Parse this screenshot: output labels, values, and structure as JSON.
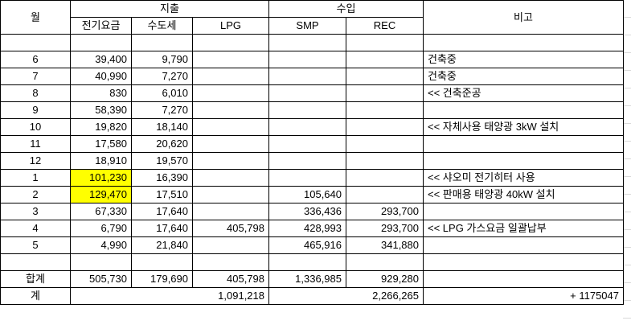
{
  "header": {
    "month": "월",
    "expense_group": "지출",
    "income_group": "수입",
    "remarks": "비고",
    "col_electricity": "전기요금",
    "col_water": "수도세",
    "col_lpg": "LPG",
    "col_smp": "SMP",
    "col_rec": "REC"
  },
  "rows": [
    {
      "month": "",
      "elec": "",
      "water": "",
      "lpg": "",
      "smp": "",
      "rec": "",
      "note": ""
    },
    {
      "month": "6",
      "elec": "39,400",
      "water": "9,790",
      "lpg": "",
      "smp": "",
      "rec": "",
      "note": "건축중"
    },
    {
      "month": "7",
      "elec": "40,990",
      "water": "7,270",
      "lpg": "",
      "smp": "",
      "rec": "",
      "note": "건축중"
    },
    {
      "month": "8",
      "elec": "830",
      "water": "6,010",
      "lpg": "",
      "smp": "",
      "rec": "",
      "note": "<< 건축준공"
    },
    {
      "month": "9",
      "elec": "58,390",
      "water": "7,270",
      "lpg": "",
      "smp": "",
      "rec": "",
      "note": ""
    },
    {
      "month": "10",
      "elec": "19,820",
      "water": "18,140",
      "lpg": "",
      "smp": "",
      "rec": "",
      "note": "<< 자체사용 태양광 3kW 설치"
    },
    {
      "month": "11",
      "elec": "17,580",
      "water": "20,620",
      "lpg": "",
      "smp": "",
      "rec": "",
      "note": ""
    },
    {
      "month": "12",
      "elec": "18,910",
      "water": "19,570",
      "lpg": "",
      "smp": "",
      "rec": "",
      "note": ""
    },
    {
      "month": "1",
      "elec": "101,230",
      "water": "16,390",
      "lpg": "",
      "smp": "",
      "rec": "",
      "note": "<< 샤오미 전기히터 사용",
      "highlight": true
    },
    {
      "month": "2",
      "elec": "129,470",
      "water": "17,510",
      "lpg": "",
      "smp": "105,640",
      "rec": "",
      "note": "<< 판매용 태양광 40kW 설치",
      "highlight": true
    },
    {
      "month": "3",
      "elec": "67,330",
      "water": "17,640",
      "lpg": "",
      "smp": "336,436",
      "rec": "293,700",
      "note": ""
    },
    {
      "month": "4",
      "elec": "6,790",
      "water": "17,640",
      "lpg": "405,798",
      "smp": "428,993",
      "rec": "293,700",
      "note": "<< LPG 가스요금 일괄납부"
    },
    {
      "month": "5",
      "elec": "4,990",
      "water": "21,840",
      "lpg": "",
      "smp": "465,916",
      "rec": "341,880",
      "note": ""
    },
    {
      "month": "",
      "elec": "",
      "water": "",
      "lpg": "",
      "smp": "",
      "rec": "",
      "note": ""
    }
  ],
  "totals": {
    "label": "합계",
    "elec": "505,730",
    "water": "179,690",
    "lpg": "405,798",
    "smp": "1,336,985",
    "rec": "929,280"
  },
  "grand": {
    "label": "계",
    "expense_total": "1,091,218",
    "income_total": "2,266,265",
    "net": "+ 1175047"
  },
  "colors": {
    "highlight": "#ffff00",
    "border": "#000000",
    "gridline": "#d9d9d9"
  }
}
